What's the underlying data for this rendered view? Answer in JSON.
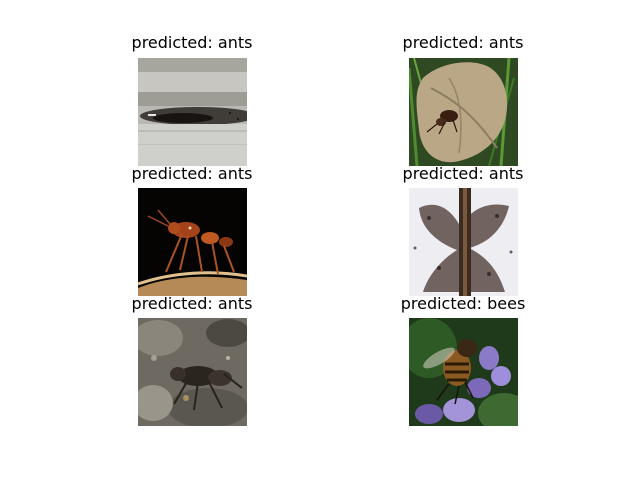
{
  "panels": [
    {
      "title": "predicted: ants"
    },
    {
      "title": "predicted: ants"
    },
    {
      "title": "predicted: ants"
    },
    {
      "title": "predicted: ants"
    },
    {
      "title": "predicted: ants"
    },
    {
      "title": "predicted: bees"
    }
  ]
}
